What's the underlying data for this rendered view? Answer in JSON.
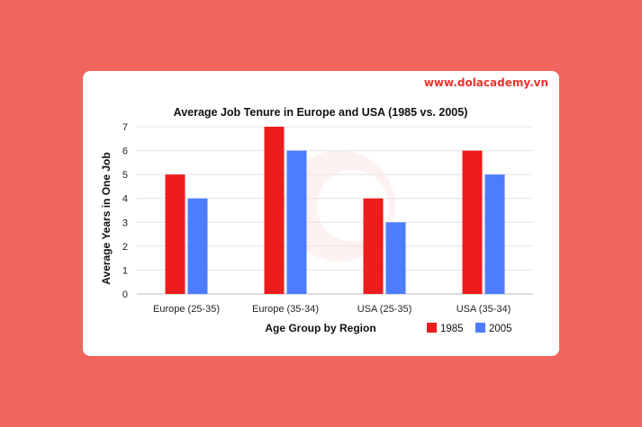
{
  "brand": {
    "label": "www.dolacademy.vn"
  },
  "colors": {
    "background": "#F0655D",
    "series_1985": "#EE1C1C",
    "series_2005": "#4D7CFE"
  },
  "chart_data": {
    "type": "bar",
    "title": "Average Job Tenure in Europe and USA (1985 vs. 2005)",
    "xlabel": "Age Group by Region",
    "ylabel": "Average Years in One Job",
    "categories": [
      "Europe (25-35)",
      "Europe (35-34)",
      "USA (25-35)",
      "USA (35-34)"
    ],
    "series": [
      {
        "name": "1985",
        "values": [
          5,
          7,
          4,
          6
        ]
      },
      {
        "name": "2005",
        "values": [
          4,
          6,
          3,
          5
        ]
      }
    ],
    "ylim": [
      0,
      7
    ],
    "yticks": [
      "0",
      "1",
      "2",
      "3",
      "4",
      "5",
      "6",
      "7"
    ],
    "grid": true,
    "legend_position": "bottom-right"
  }
}
